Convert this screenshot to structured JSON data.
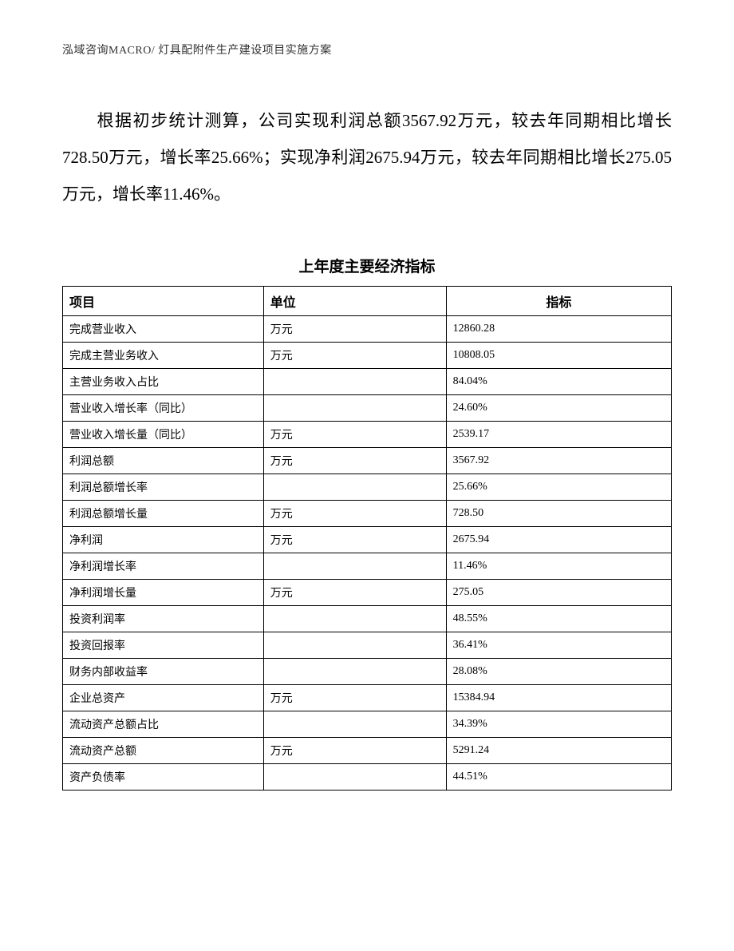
{
  "header": "泓域咨询MACRO/ 灯具配附件生产建设项目实施方案",
  "paragraph": "根据初步统计测算，公司实现利润总额3567.92万元，较去年同期相比增长728.50万元，增长率25.66%；实现净利润2675.94万元，较去年同期相比增长275.05万元，增长率11.46%。",
  "table": {
    "title": "上年度主要经济指标",
    "columns": [
      "项目",
      "单位",
      "指标"
    ],
    "rows": [
      [
        "完成营业收入",
        "万元",
        "12860.28"
      ],
      [
        "完成主营业务收入",
        "万元",
        "10808.05"
      ],
      [
        "主营业务收入占比",
        "",
        "84.04%"
      ],
      [
        "营业收入增长率（同比）",
        "",
        "24.60%"
      ],
      [
        "营业收入增长量（同比）",
        "万元",
        "2539.17"
      ],
      [
        "利润总额",
        "万元",
        "3567.92"
      ],
      [
        "利润总额增长率",
        "",
        "25.66%"
      ],
      [
        "利润总额增长量",
        "万元",
        "728.50"
      ],
      [
        "净利润",
        "万元",
        "2675.94"
      ],
      [
        "净利润增长率",
        "",
        "11.46%"
      ],
      [
        "净利润增长量",
        "万元",
        "275.05"
      ],
      [
        "投资利润率",
        "",
        "48.55%"
      ],
      [
        "投资回报率",
        "",
        "36.41%"
      ],
      [
        "财务内部收益率",
        "",
        "28.08%"
      ],
      [
        "企业总资产",
        "万元",
        "15384.94"
      ],
      [
        "流动资产总额占比",
        "",
        "34.39%"
      ],
      [
        "流动资产总额",
        "万元",
        "5291.24"
      ],
      [
        "资产负债率",
        "",
        "44.51%"
      ]
    ]
  }
}
